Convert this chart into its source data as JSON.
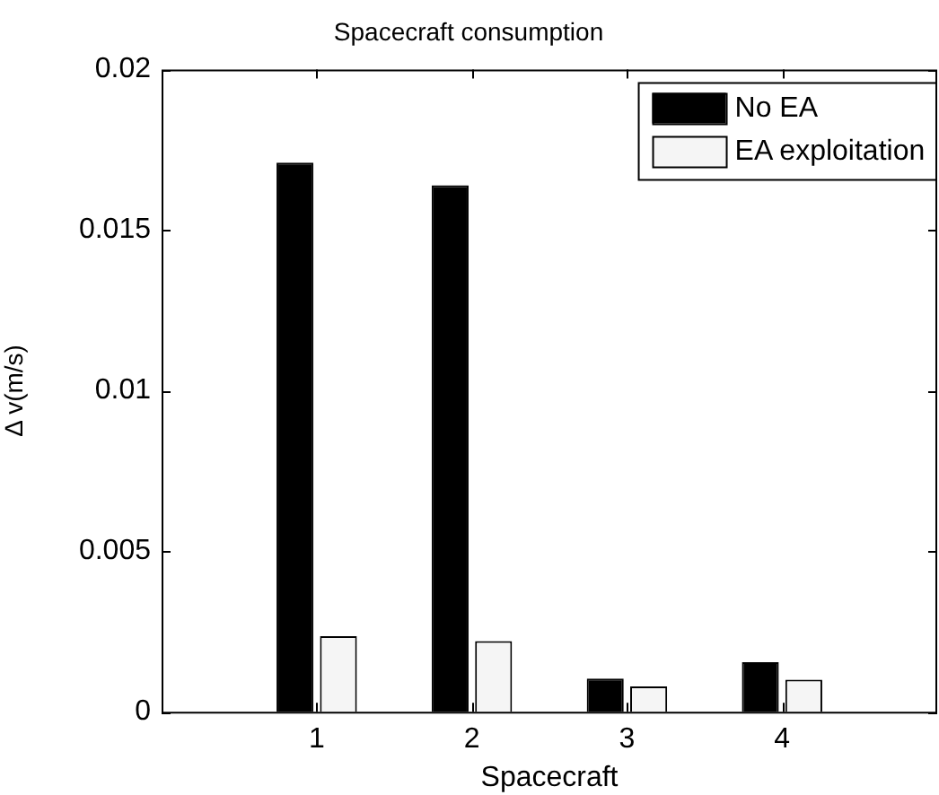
{
  "chart_data": {
    "type": "bar",
    "title": "Spacecraft consumption",
    "xlabel": "Spacecraft",
    "ylabel": "Δ v(m/s)",
    "x": [
      1,
      2,
      3,
      4
    ],
    "xlim": [
      0,
      5
    ],
    "xticks": [
      1,
      2,
      3,
      4
    ],
    "ylim": [
      0,
      0.02
    ],
    "yticks": [
      0,
      0.005,
      0.01,
      0.015,
      0.02
    ],
    "series": [
      {
        "name": "No EA",
        "color": "#000000",
        "values": [
          0.0171,
          0.0164,
          0.00103,
          0.00154
        ]
      },
      {
        "name": "EA exploitation",
        "color": "#f5f5f5",
        "values": [
          0.00235,
          0.0022,
          0.00079,
          0.001
        ]
      }
    ],
    "legend": "top right",
    "grid": false
  }
}
